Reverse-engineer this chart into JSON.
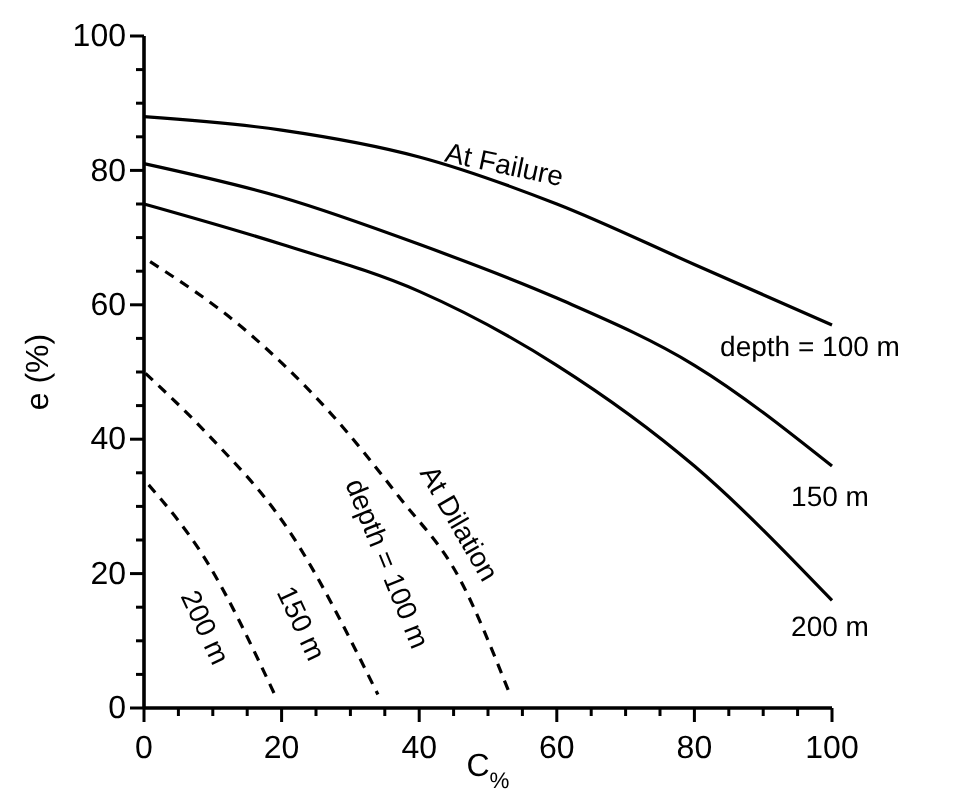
{
  "chart_data": {
    "type": "line",
    "xlabel": "C$_{%}$",
    "ylabel": "e (%)",
    "xlim": [
      0,
      100
    ],
    "ylim": [
      0,
      100
    ],
    "xticks": [
      0,
      {
        "value": 5,
        "label": null
      },
      {
        "value": 10,
        "label": null
      },
      {
        "value": 15,
        "label": null
      },
      20,
      {
        "value": 25,
        "label": null
      },
      {
        "value": 30,
        "label": null
      },
      {
        "value": 35,
        "label": null
      },
      40,
      {
        "value": 45,
        "label": null
      },
      {
        "value": 50,
        "label": null
      },
      {
        "value": 55,
        "label": null
      },
      60,
      {
        "value": 65,
        "label": null
      },
      {
        "value": 70,
        "label": null
      },
      {
        "value": 75,
        "label": null
      },
      80,
      {
        "value": 85,
        "label": null
      },
      {
        "value": 90,
        "label": null
      },
      {
        "value": 95,
        "label": null
      },
      100
    ],
    "yticks": [
      0,
      {
        "value": 5,
        "label": null
      },
      {
        "value": 10,
        "label": null
      },
      {
        "value": 15,
        "label": null
      },
      20,
      {
        "value": 25,
        "label": null
      },
      {
        "value": 30,
        "label": null
      },
      {
        "value": 35,
        "label": null
      },
      40,
      {
        "value": 45,
        "label": null
      },
      {
        "value": 50,
        "label": null
      },
      {
        "value": 55,
        "label": null
      },
      60,
      {
        "value": 65,
        "label": null
      },
      {
        "value": 70,
        "label": null
      },
      {
        "value": 75,
        "label": null
      },
      80,
      {
        "value": 85,
        "label": null
      },
      {
        "value": 90,
        "label": null
      },
      {
        "value": 95,
        "label": null
      },
      100
    ],
    "grid": false,
    "marker": "none",
    "series": [
      {
        "color": "#000000",
        "line_style": "solid",
        "x": [
          0,
          20,
          40,
          60,
          80,
          100
        ],
        "values": [
          88,
          86,
          82,
          75,
          66,
          57
        ]
      },
      {
        "color": "#000000",
        "line_style": "solid",
        "x": [
          0,
          20,
          40,
          60,
          80,
          100
        ],
        "values": [
          81,
          76,
          69,
          61,
          51,
          36
        ]
      },
      {
        "color": "#000000",
        "line_style": "solid",
        "x": [
          0,
          20,
          40,
          60,
          80,
          100
        ],
        "values": [
          75,
          69,
          62,
          51,
          36,
          16
        ]
      },
      {
        "color": "#000000",
        "line_style": "dashed",
        "x": [
          0,
          15,
          27,
          37,
          46,
          53
        ],
        "values": [
          67,
          56,
          44,
          31.5,
          19,
          2.5
        ]
      },
      {
        "color": "#000000",
        "line_style": "dashed",
        "x": [
          0,
          9,
          21,
          34
        ],
        "values": [
          50,
          41,
          26.5,
          2
        ]
      },
      {
        "color": "#000000",
        "line_style": "dashed",
        "x": [
          0,
          9,
          19
        ],
        "values": [
          34,
          22,
          2
        ]
      }
    ],
    "annotations": [
      "At Failure",
      "depth = 100 m",
      "150 m",
      "200 m",
      "At Dilation",
      "depth = 100 m",
      "150 m",
      "200 m"
    ]
  }
}
